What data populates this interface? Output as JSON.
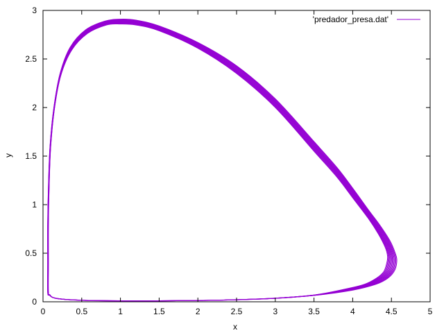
{
  "chart_data": {
    "type": "line",
    "title": "",
    "xlabel": "x",
    "ylabel": "y",
    "xlim": [
      0,
      5
    ],
    "ylim": [
      0,
      3
    ],
    "xticks": [
      "0",
      "0.5",
      "1",
      "1.5",
      "2",
      "2.5",
      "3",
      "3.5",
      "4",
      "4.5",
      "5"
    ],
    "yticks": [
      "0",
      "0.5",
      "1",
      "1.5",
      "2",
      "2.5",
      "3"
    ],
    "grid": false,
    "legend_position": "top-right",
    "line_color": "#9400d3",
    "series": [
      {
        "name": "'predador_presa.dat'",
        "loops": 12,
        "outer_loop": [
          [
            0.06,
            0.1
          ],
          [
            0.06,
            0.4
          ],
          [
            0.06,
            0.8
          ],
          [
            0.07,
            1.2
          ],
          [
            0.09,
            1.6
          ],
          [
            0.14,
            2.0
          ],
          [
            0.22,
            2.35
          ],
          [
            0.35,
            2.62
          ],
          [
            0.55,
            2.8
          ],
          [
            0.8,
            2.89
          ],
          [
            1.0,
            2.91
          ],
          [
            1.2,
            2.9
          ],
          [
            1.5,
            2.84
          ],
          [
            2.0,
            2.67
          ],
          [
            2.5,
            2.43
          ],
          [
            3.0,
            2.09
          ],
          [
            3.5,
            1.65
          ],
          [
            3.8,
            1.38
          ],
          [
            4.0,
            1.17
          ],
          [
            4.2,
            0.95
          ],
          [
            4.35,
            0.79
          ],
          [
            4.48,
            0.63
          ],
          [
            4.55,
            0.5
          ],
          [
            4.57,
            0.42
          ],
          [
            4.54,
            0.32
          ],
          [
            4.45,
            0.24
          ],
          [
            4.3,
            0.18
          ],
          [
            4.0,
            0.12
          ],
          [
            3.5,
            0.065
          ],
          [
            3.0,
            0.035
          ],
          [
            2.5,
            0.02
          ],
          [
            2.0,
            0.012
          ],
          [
            1.5,
            0.009
          ],
          [
            1.0,
            0.009
          ],
          [
            0.6,
            0.012
          ],
          [
            0.35,
            0.02
          ],
          [
            0.2,
            0.03
          ],
          [
            0.12,
            0.045
          ],
          [
            0.08,
            0.07
          ],
          [
            0.06,
            0.1
          ]
        ],
        "inner_loop": [
          [
            0.07,
            0.1
          ],
          [
            0.07,
            0.4
          ],
          [
            0.07,
            0.8
          ],
          [
            0.08,
            1.2
          ],
          [
            0.1,
            1.6
          ],
          [
            0.15,
            2.0
          ],
          [
            0.23,
            2.33
          ],
          [
            0.37,
            2.59
          ],
          [
            0.57,
            2.76
          ],
          [
            0.82,
            2.85
          ],
          [
            1.0,
            2.86
          ],
          [
            1.2,
            2.85
          ],
          [
            1.5,
            2.79
          ],
          [
            2.0,
            2.61
          ],
          [
            2.5,
            2.35
          ],
          [
            3.0,
            2.0
          ],
          [
            3.5,
            1.55
          ],
          [
            3.8,
            1.28
          ],
          [
            4.0,
            1.07
          ],
          [
            4.2,
            0.86
          ],
          [
            4.33,
            0.7
          ],
          [
            4.42,
            0.56
          ],
          [
            4.45,
            0.47
          ],
          [
            4.44,
            0.4
          ],
          [
            4.4,
            0.31
          ],
          [
            4.3,
            0.24
          ],
          [
            4.15,
            0.18
          ],
          [
            3.9,
            0.13
          ],
          [
            3.5,
            0.07
          ],
          [
            3.0,
            0.038
          ],
          [
            2.5,
            0.022
          ],
          [
            2.0,
            0.014
          ],
          [
            1.5,
            0.011
          ],
          [
            1.0,
            0.011
          ],
          [
            0.6,
            0.014
          ],
          [
            0.35,
            0.022
          ],
          [
            0.2,
            0.033
          ],
          [
            0.12,
            0.048
          ],
          [
            0.09,
            0.072
          ],
          [
            0.07,
            0.1
          ]
        ]
      }
    ]
  }
}
